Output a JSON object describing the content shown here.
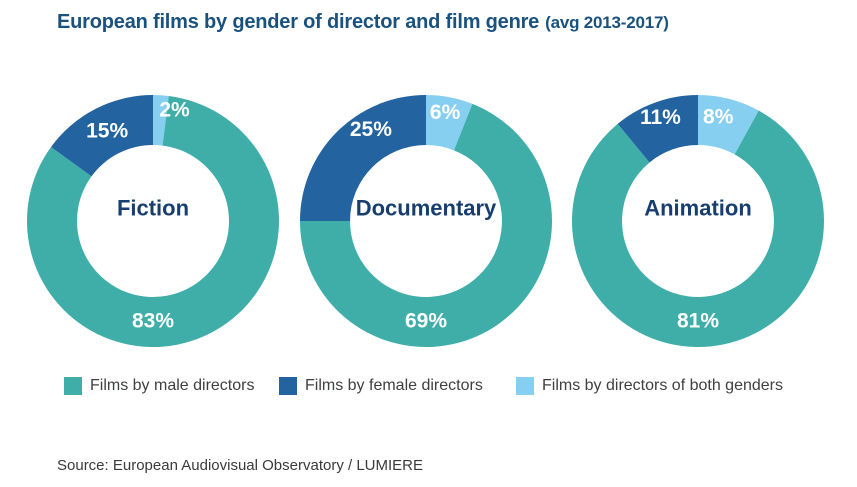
{
  "title": {
    "text": "European films by gender of director and film genre",
    "suffix": "(avg 2013-2017)"
  },
  "colors": {
    "male": "#3FAEA9",
    "female": "#2263A0",
    "both": "#87CFF0",
    "title_text": "#19527E",
    "center_text": "#173E6F",
    "percent_text": "#FFFFFF",
    "legend_text": "#3F4040",
    "source_text": "#3A3A3A"
  },
  "chart_data": [
    {
      "type": "pie",
      "subtype": "donut",
      "center_label": "Fiction",
      "start_angle_deg": 0,
      "direction": "clockwise",
      "slices": [
        {
          "series": "Films by directors of both genders",
          "value": 2,
          "label": "2%",
          "color_key": "both",
          "label_angle": 11,
          "label_r": 113
        },
        {
          "series": "Films by male directors",
          "value": 83,
          "label": "83%",
          "color_key": "male",
          "label_angle": 180,
          "label_r": 100
        },
        {
          "series": "Films by female directors",
          "value": 15,
          "label": "15%",
          "color_key": "female",
          "label_angle": 333,
          "label_r": 101
        }
      ]
    },
    {
      "type": "pie",
      "subtype": "donut",
      "center_label": "Documentary",
      "start_angle_deg": 0,
      "direction": "clockwise",
      "slices": [
        {
          "series": "Films by directors of both genders",
          "value": 6,
          "label": "6%",
          "color_key": "both",
          "label_angle": 10,
          "label_r": 110
        },
        {
          "series": "Films by male directors",
          "value": 69,
          "label": "69%",
          "color_key": "male",
          "label_angle": 180,
          "label_r": 100
        },
        {
          "series": "Films by female directors",
          "value": 25,
          "label": "25%",
          "color_key": "female",
          "label_angle": 329,
          "label_r": 107
        }
      ]
    },
    {
      "type": "pie",
      "subtype": "donut",
      "center_label": "Animation",
      "start_angle_deg": 0,
      "direction": "clockwise",
      "slices": [
        {
          "series": "Films by directors of both genders",
          "value": 8,
          "label": "8%",
          "color_key": "both",
          "label_angle": 11,
          "label_r": 106
        },
        {
          "series": "Films by male directors",
          "value": 81,
          "label": "81%",
          "color_key": "male",
          "label_angle": 180,
          "label_r": 100
        },
        {
          "series": "Films by female directors",
          "value": 11,
          "label": "11%",
          "color_key": "female",
          "label_angle": 340,
          "label_r": 110
        }
      ]
    }
  ],
  "legend": {
    "items": [
      {
        "label": "Films by male directors",
        "color_key": "male"
      },
      {
        "label": "Films by female directors",
        "color_key": "female"
      },
      {
        "label": "Films by directors of both genders",
        "color_key": "both"
      }
    ]
  },
  "source": "Source: European Audiovisual Observatory / LUMIERE"
}
